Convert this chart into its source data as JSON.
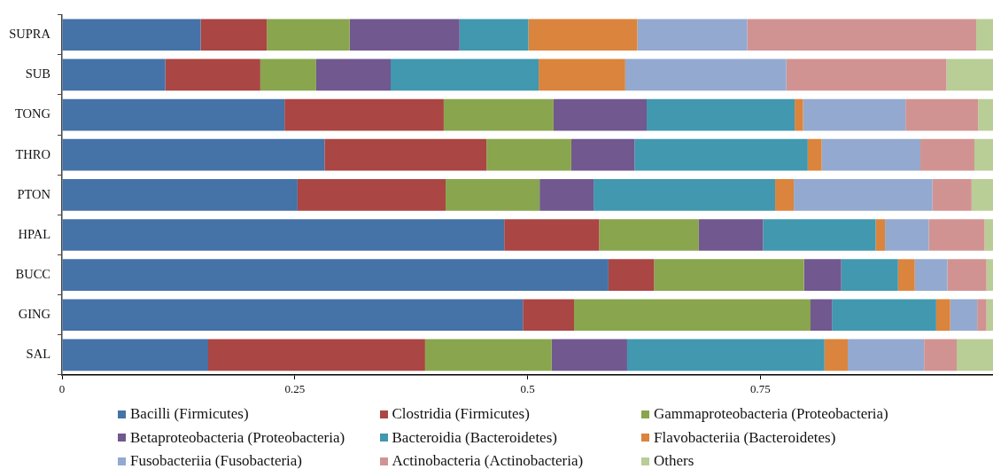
{
  "chart_data": {
    "type": "bar",
    "orientation": "horizontal",
    "stacked": true,
    "categories": [
      "SUPRA",
      "SUB",
      "TONG",
      "THRO",
      "PTON",
      "HPAL",
      "BUCC",
      "GING",
      "SAL"
    ],
    "series": [
      {
        "name": "Bacilli (Firmicutes)",
        "color": "#4572a7",
        "values": [
          0.149,
          0.111,
          0.239,
          0.282,
          0.253,
          0.475,
          0.587,
          0.495,
          0.157
        ]
      },
      {
        "name": "Clostridia (Firmicutes)",
        "color": "#aa4643",
        "values": [
          0.071,
          0.102,
          0.171,
          0.174,
          0.159,
          0.102,
          0.049,
          0.055,
          0.233
        ]
      },
      {
        "name": "Gammaproteobacteria (Proteobacteria)",
        "color": "#89a54e",
        "values": [
          0.089,
          0.06,
          0.118,
          0.091,
          0.101,
          0.107,
          0.161,
          0.254,
          0.136
        ]
      },
      {
        "name": "Betaproteobacteria (Proteobacteria)",
        "color": "#71588f",
        "values": [
          0.118,
          0.08,
          0.1,
          0.068,
          0.058,
          0.069,
          0.04,
          0.023,
          0.081
        ]
      },
      {
        "name": "Bacteroidia (Bacteroidetes)",
        "color": "#4198af",
        "values": [
          0.074,
          0.159,
          0.159,
          0.186,
          0.195,
          0.121,
          0.061,
          0.112,
          0.212
        ]
      },
      {
        "name": "Flavobacteriia (Bacteroidetes)",
        "color": "#db843d",
        "values": [
          0.117,
          0.093,
          0.009,
          0.015,
          0.02,
          0.01,
          0.018,
          0.015,
          0.025
        ]
      },
      {
        "name": "Fusobacteriia (Fusobacteria)",
        "color": "#93a9cf",
        "values": [
          0.118,
          0.173,
          0.11,
          0.106,
          0.149,
          0.047,
          0.035,
          0.029,
          0.082
        ]
      },
      {
        "name": "Actinobacteria (Actinobacteria)",
        "color": "#d19392",
        "values": [
          0.246,
          0.172,
          0.078,
          0.058,
          0.042,
          0.06,
          0.042,
          0.01,
          0.035
        ]
      },
      {
        "name": "Others",
        "color": "#b9cd96",
        "values": [
          0.018,
          0.05,
          0.016,
          0.02,
          0.023,
          0.009,
          0.007,
          0.007,
          0.039
        ]
      }
    ],
    "xlim": [
      0,
      1
    ],
    "xticks": [
      0,
      0.25,
      0.5,
      0.75
    ],
    "legend": "bottom"
  }
}
